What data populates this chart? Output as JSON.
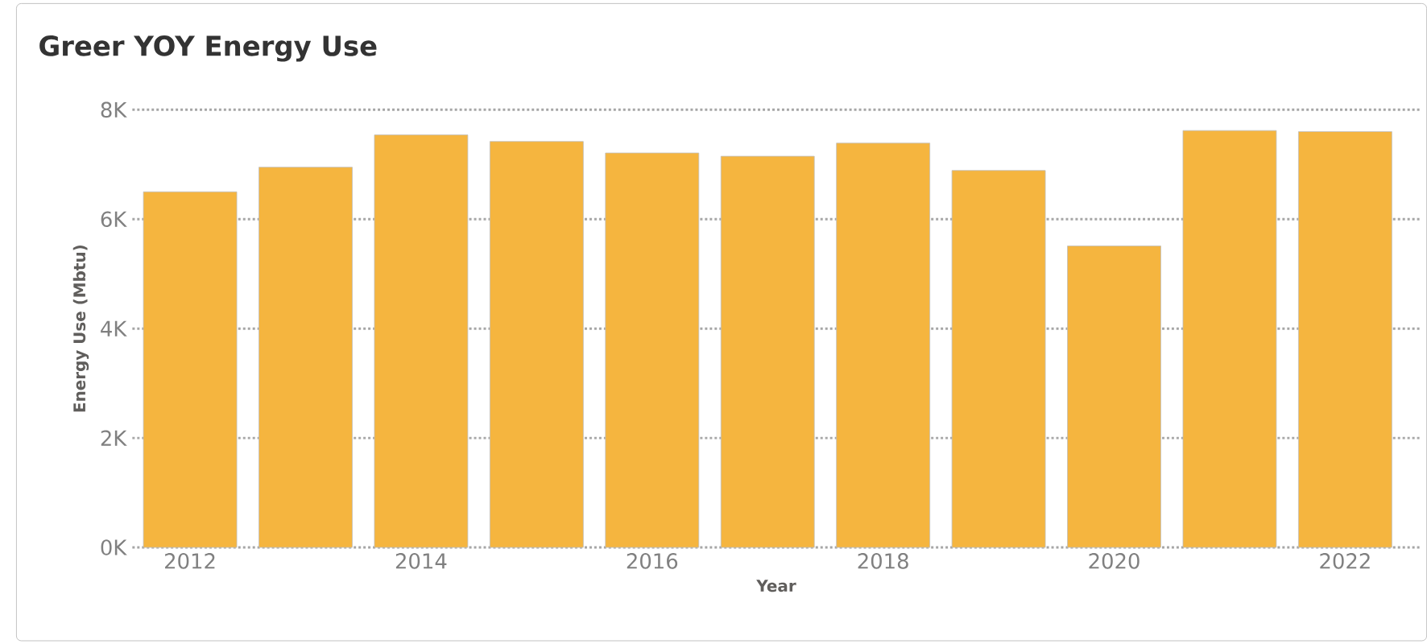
{
  "chart_data": {
    "type": "bar",
    "title": "Greer YOY Energy Use",
    "xlabel": "Year",
    "ylabel": "Energy Use (Mbtu)",
    "categories": [
      "2012",
      null,
      "2014",
      null,
      "2016",
      null,
      "2018",
      null,
      "2020",
      null,
      "2022"
    ],
    "values": [
      6500,
      6950,
      7540,
      7420,
      7210,
      7150,
      7390,
      6890,
      5510,
      7620,
      7600
    ],
    "color": "#f5b53f",
    "ylim": [
      0,
      8000
    ],
    "yticks": [
      {
        "value": 0,
        "label": "0K"
      },
      {
        "value": 2000,
        "label": "2K"
      },
      {
        "value": 4000,
        "label": "4K"
      },
      {
        "value": 6000,
        "label": "6K"
      },
      {
        "value": 8000,
        "label": "8K"
      }
    ],
    "grid": "y"
  }
}
